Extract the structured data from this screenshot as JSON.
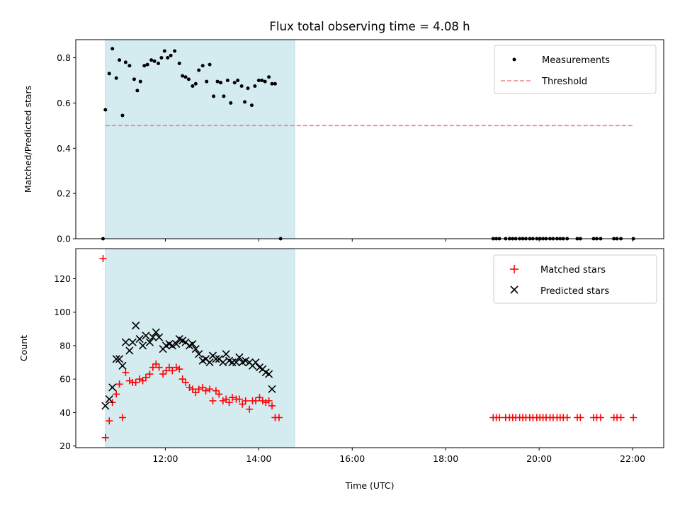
{
  "chart_data": [
    {
      "type": "scatter",
      "title": "Flux total observing time = 4.08 h",
      "xlabel": "",
      "ylabel": "Matched/Predicted stars",
      "xlim": [
        "10:05",
        "22:40"
      ],
      "ylim": [
        0,
        0.88
      ],
      "yticks": [
        0.0,
        0.2,
        0.4,
        0.6,
        0.8
      ],
      "ytick_labels": [
        "0.0",
        "0.2",
        "0.4",
        "0.6",
        "0.8"
      ],
      "legend_position": "top-right",
      "shaded_interval": {
        "start": "10:43",
        "end": "14:46",
        "color": "#d4ebf0"
      },
      "series": [
        {
          "name": "Measurements",
          "marker": "dot",
          "color": "#000000",
          "points": [
            {
              "x": "10:40",
              "y": 0.0
            },
            {
              "x": "10:43",
              "y": 0.57
            },
            {
              "x": "10:48",
              "y": 0.73
            },
            {
              "x": "10:52",
              "y": 0.84
            },
            {
              "x": "10:57",
              "y": 0.71
            },
            {
              "x": "11:01",
              "y": 0.79
            },
            {
              "x": "11:05",
              "y": 0.545
            },
            {
              "x": "11:09",
              "y": 0.78
            },
            {
              "x": "11:14",
              "y": 0.765
            },
            {
              "x": "11:20",
              "y": 0.705
            },
            {
              "x": "11:24",
              "y": 0.655
            },
            {
              "x": "11:28",
              "y": 0.695
            },
            {
              "x": "11:33",
              "y": 0.765
            },
            {
              "x": "11:37",
              "y": 0.77
            },
            {
              "x": "11:42",
              "y": 0.79
            },
            {
              "x": "11:46",
              "y": 0.785
            },
            {
              "x": "11:51",
              "y": 0.775
            },
            {
              "x": "11:55",
              "y": 0.8
            },
            {
              "x": "11:59",
              "y": 0.83
            },
            {
              "x": "12:03",
              "y": 0.8
            },
            {
              "x": "12:07",
              "y": 0.81
            },
            {
              "x": "12:12",
              "y": 0.83
            },
            {
              "x": "12:18",
              "y": 0.775
            },
            {
              "x": "12:22",
              "y": 0.72
            },
            {
              "x": "12:26",
              "y": 0.715
            },
            {
              "x": "12:30",
              "y": 0.705
            },
            {
              "x": "12:35",
              "y": 0.675
            },
            {
              "x": "12:39",
              "y": 0.685
            },
            {
              "x": "12:43",
              "y": 0.745
            },
            {
              "x": "12:48",
              "y": 0.765
            },
            {
              "x": "12:53",
              "y": 0.695
            },
            {
              "x": "12:57",
              "y": 0.77
            },
            {
              "x": "13:02",
              "y": 0.63
            },
            {
              "x": "13:07",
              "y": 0.695
            },
            {
              "x": "13:11",
              "y": 0.69
            },
            {
              "x": "13:15",
              "y": 0.63
            },
            {
              "x": "13:20",
              "y": 0.7
            },
            {
              "x": "13:24",
              "y": 0.6
            },
            {
              "x": "13:29",
              "y": 0.69
            },
            {
              "x": "13:33",
              "y": 0.7
            },
            {
              "x": "13:38",
              "y": 0.675
            },
            {
              "x": "13:42",
              "y": 0.605
            },
            {
              "x": "13:46",
              "y": 0.665
            },
            {
              "x": "13:51",
              "y": 0.59
            },
            {
              "x": "13:55",
              "y": 0.675
            },
            {
              "x": "14:00",
              "y": 0.7
            },
            {
              "x": "14:04",
              "y": 0.7
            },
            {
              "x": "14:08",
              "y": 0.695
            },
            {
              "x": "14:13",
              "y": 0.715
            },
            {
              "x": "14:17",
              "y": 0.685
            },
            {
              "x": "14:21",
              "y": 0.685
            },
            {
              "x": "14:28",
              "y": 0.0
            },
            {
              "x": "19:01",
              "y": 0.0
            },
            {
              "x": "19:05",
              "y": 0.0
            },
            {
              "x": "19:09",
              "y": 0.0
            },
            {
              "x": "19:17",
              "y": 0.0
            },
            {
              "x": "19:22",
              "y": 0.0
            },
            {
              "x": "19:26",
              "y": 0.0
            },
            {
              "x": "19:30",
              "y": 0.0
            },
            {
              "x": "19:35",
              "y": 0.0
            },
            {
              "x": "19:39",
              "y": 0.0
            },
            {
              "x": "19:43",
              "y": 0.0
            },
            {
              "x": "19:48",
              "y": 0.0
            },
            {
              "x": "19:52",
              "y": 0.0
            },
            {
              "x": "19:57",
              "y": 0.0
            },
            {
              "x": "20:01",
              "y": 0.0
            },
            {
              "x": "20:05",
              "y": 0.0
            },
            {
              "x": "20:09",
              "y": 0.0
            },
            {
              "x": "20:14",
              "y": 0.0
            },
            {
              "x": "20:18",
              "y": 0.0
            },
            {
              "x": "20:23",
              "y": 0.0
            },
            {
              "x": "20:27",
              "y": 0.0
            },
            {
              "x": "20:31",
              "y": 0.0
            },
            {
              "x": "20:36",
              "y": 0.0
            },
            {
              "x": "20:49",
              "y": 0.0
            },
            {
              "x": "20:53",
              "y": 0.0
            },
            {
              "x": "21:10",
              "y": 0.0
            },
            {
              "x": "21:14",
              "y": 0.0
            },
            {
              "x": "21:19",
              "y": 0.0
            },
            {
              "x": "21:36",
              "y": 0.0
            },
            {
              "x": "21:40",
              "y": 0.0
            },
            {
              "x": "21:45",
              "y": 0.0
            },
            {
              "x": "22:01",
              "y": 0.0
            }
          ]
        },
        {
          "name": "Threshold",
          "marker": "dashed-line",
          "color": "#f08080",
          "points": [
            {
              "x": "10:43",
              "y": 0.5
            },
            {
              "x": "22:01",
              "y": 0.5
            }
          ]
        }
      ]
    },
    {
      "type": "scatter",
      "title": "",
      "xlabel": "Time (UTC)",
      "ylabel": "Count",
      "xlim": [
        "10:05",
        "22:40"
      ],
      "ylim": [
        19,
        138
      ],
      "yticks": [
        20,
        40,
        60,
        80,
        100,
        120
      ],
      "ytick_labels": [
        "20",
        "40",
        "60",
        "80",
        "100",
        "120"
      ],
      "xticks": [
        "12:00",
        "14:00",
        "16:00",
        "18:00",
        "20:00",
        "22:00"
      ],
      "xtick_labels": [
        "12:00",
        "14:00",
        "16:00",
        "18:00",
        "20:00",
        "22:00"
      ],
      "legend_position": "top-right",
      "shaded_interval": {
        "start": "10:43",
        "end": "14:46",
        "color": "#d4ebf0"
      },
      "series": [
        {
          "name": "Matched stars",
          "marker": "plus",
          "color": "#ff0000",
          "points": [
            {
              "x": "10:40",
              "y": 132
            },
            {
              "x": "10:43",
              "y": 25
            },
            {
              "x": "10:48",
              "y": 35
            },
            {
              "x": "10:52",
              "y": 46
            },
            {
              "x": "10:57",
              "y": 51
            },
            {
              "x": "11:01",
              "y": 57
            },
            {
              "x": "11:05",
              "y": 37
            },
            {
              "x": "11:09",
              "y": 64
            },
            {
              "x": "11:14",
              "y": 59
            },
            {
              "x": "11:18",
              "y": 58
            },
            {
              "x": "11:22",
              "y": 58
            },
            {
              "x": "11:27",
              "y": 60
            },
            {
              "x": "11:31",
              "y": 59
            },
            {
              "x": "11:35",
              "y": 61
            },
            {
              "x": "11:40",
              "y": 63
            },
            {
              "x": "11:44",
              "y": 67
            },
            {
              "x": "11:48",
              "y": 69
            },
            {
              "x": "11:52",
              "y": 67
            },
            {
              "x": "11:57",
              "y": 63
            },
            {
              "x": "12:01",
              "y": 65
            },
            {
              "x": "12:05",
              "y": 67
            },
            {
              "x": "12:09",
              "y": 65
            },
            {
              "x": "12:14",
              "y": 67
            },
            {
              "x": "12:18",
              "y": 66
            },
            {
              "x": "12:22",
              "y": 60
            },
            {
              "x": "12:26",
              "y": 58
            },
            {
              "x": "12:31",
              "y": 55
            },
            {
              "x": "12:35",
              "y": 54
            },
            {
              "x": "12:39",
              "y": 52
            },
            {
              "x": "12:43",
              "y": 54
            },
            {
              "x": "12:48",
              "y": 55
            },
            {
              "x": "12:52",
              "y": 53
            },
            {
              "x": "12:57",
              "y": 54
            },
            {
              "x": "13:01",
              "y": 47
            },
            {
              "x": "13:05",
              "y": 53
            },
            {
              "x": "13:09",
              "y": 51
            },
            {
              "x": "13:14",
              "y": 47
            },
            {
              "x": "13:18",
              "y": 48
            },
            {
              "x": "13:22",
              "y": 46
            },
            {
              "x": "13:26",
              "y": 49
            },
            {
              "x": "13:31",
              "y": 48
            },
            {
              "x": "13:35",
              "y": 48
            },
            {
              "x": "13:39",
              "y": 45
            },
            {
              "x": "13:43",
              "y": 47
            },
            {
              "x": "13:48",
              "y": 42
            },
            {
              "x": "13:52",
              "y": 47
            },
            {
              "x": "13:56",
              "y": 47
            },
            {
              "x": "14:01",
              "y": 49
            },
            {
              "x": "14:05",
              "y": 47
            },
            {
              "x": "14:09",
              "y": 46
            },
            {
              "x": "14:13",
              "y": 47
            },
            {
              "x": "14:17",
              "y": 44
            },
            {
              "x": "14:21",
              "y": 37
            },
            {
              "x": "14:26",
              "y": 37
            },
            {
              "x": "19:01",
              "y": 37
            },
            {
              "x": "19:05",
              "y": 37
            },
            {
              "x": "19:09",
              "y": 37
            },
            {
              "x": "19:17",
              "y": 37
            },
            {
              "x": "19:22",
              "y": 37
            },
            {
              "x": "19:26",
              "y": 37
            },
            {
              "x": "19:30",
              "y": 37
            },
            {
              "x": "19:35",
              "y": 37
            },
            {
              "x": "19:39",
              "y": 37
            },
            {
              "x": "19:43",
              "y": 37
            },
            {
              "x": "19:48",
              "y": 37
            },
            {
              "x": "19:52",
              "y": 37
            },
            {
              "x": "19:57",
              "y": 37
            },
            {
              "x": "20:01",
              "y": 37
            },
            {
              "x": "20:05",
              "y": 37
            },
            {
              "x": "20:09",
              "y": 37
            },
            {
              "x": "20:14",
              "y": 37
            },
            {
              "x": "20:18",
              "y": 37
            },
            {
              "x": "20:23",
              "y": 37
            },
            {
              "x": "20:27",
              "y": 37
            },
            {
              "x": "20:31",
              "y": 37
            },
            {
              "x": "20:36",
              "y": 37
            },
            {
              "x": "20:49",
              "y": 37
            },
            {
              "x": "20:53",
              "y": 37
            },
            {
              "x": "21:10",
              "y": 37
            },
            {
              "x": "21:14",
              "y": 37
            },
            {
              "x": "21:19",
              "y": 37
            },
            {
              "x": "21:36",
              "y": 37
            },
            {
              "x": "21:40",
              "y": 37
            },
            {
              "x": "21:45",
              "y": 37
            },
            {
              "x": "22:01",
              "y": 37
            }
          ]
        },
        {
          "name": "Predicted stars",
          "marker": "x",
          "color": "#000000",
          "points": [
            {
              "x": "10:43",
              "y": 44
            },
            {
              "x": "10:48",
              "y": 48
            },
            {
              "x": "10:52",
              "y": 55
            },
            {
              "x": "10:57",
              "y": 72
            },
            {
              "x": "11:01",
              "y": 72
            },
            {
              "x": "11:05",
              "y": 68
            },
            {
              "x": "11:09",
              "y": 82
            },
            {
              "x": "11:14",
              "y": 77
            },
            {
              "x": "11:18",
              "y": 82
            },
            {
              "x": "11:22",
              "y": 92
            },
            {
              "x": "11:27",
              "y": 84
            },
            {
              "x": "11:31",
              "y": 80
            },
            {
              "x": "11:35",
              "y": 86
            },
            {
              "x": "11:40",
              "y": 82
            },
            {
              "x": "11:44",
              "y": 85
            },
            {
              "x": "11:48",
              "y": 88
            },
            {
              "x": "11:52",
              "y": 85
            },
            {
              "x": "11:57",
              "y": 78
            },
            {
              "x": "12:01",
              "y": 80
            },
            {
              "x": "12:05",
              "y": 81
            },
            {
              "x": "12:09",
              "y": 80
            },
            {
              "x": "12:14",
              "y": 81
            },
            {
              "x": "12:18",
              "y": 84
            },
            {
              "x": "12:22",
              "y": 83
            },
            {
              "x": "12:26",
              "y": 82
            },
            {
              "x": "12:31",
              "y": 80
            },
            {
              "x": "12:35",
              "y": 81
            },
            {
              "x": "12:39",
              "y": 78
            },
            {
              "x": "12:43",
              "y": 75
            },
            {
              "x": "12:48",
              "y": 71
            },
            {
              "x": "12:52",
              "y": 72
            },
            {
              "x": "12:57",
              "y": 70
            },
            {
              "x": "13:01",
              "y": 74
            },
            {
              "x": "13:05",
              "y": 72
            },
            {
              "x": "13:09",
              "y": 72
            },
            {
              "x": "13:14",
              "y": 70
            },
            {
              "x": "13:18",
              "y": 75
            },
            {
              "x": "13:22",
              "y": 71
            },
            {
              "x": "13:26",
              "y": 70
            },
            {
              "x": "13:31",
              "y": 70
            },
            {
              "x": "13:35",
              "y": 73
            },
            {
              "x": "13:39",
              "y": 70
            },
            {
              "x": "13:43",
              "y": 71
            },
            {
              "x": "13:48",
              "y": 70
            },
            {
              "x": "13:52",
              "y": 68
            },
            {
              "x": "13:56",
              "y": 70
            },
            {
              "x": "14:01",
              "y": 67
            },
            {
              "x": "14:05",
              "y": 66
            },
            {
              "x": "14:09",
              "y": 64
            },
            {
              "x": "14:13",
              "y": 63
            },
            {
              "x": "14:17",
              "y": 54
            }
          ]
        }
      ]
    }
  ]
}
